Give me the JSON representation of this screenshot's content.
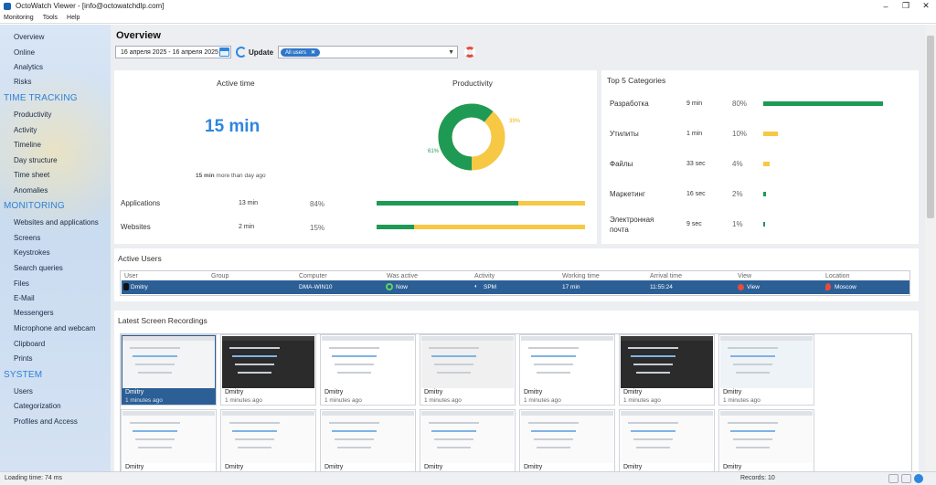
{
  "window": {
    "title": "OctoWatch Viewer - [info@octowatchdlp.com]"
  },
  "menu": [
    "Monitoring",
    "Tools",
    "Help"
  ],
  "sidebar": {
    "top_items": [
      "Overview",
      "Online",
      "Analytics",
      "Risks"
    ],
    "sections": [
      {
        "title": "TIME TRACKING",
        "items": [
          "Productivity",
          "Activity",
          "Timeline",
          "Day structure",
          "Time sheet",
          "Anomalies"
        ]
      },
      {
        "title": "MONITORING",
        "items": [
          "Websites and applications",
          "Screens",
          "Keystrokes",
          "Search queries",
          "Files",
          "E-Mail",
          "Messengers",
          "Microphone and webcam",
          "Clipboard",
          "Prints"
        ]
      },
      {
        "title": "SYSTEM",
        "items": [
          "Users",
          "Categorization",
          "Profiles and Access"
        ]
      }
    ]
  },
  "toolbar": {
    "title": "Overview",
    "date_range": "16 апреля 2025 - 16 апреля 2025",
    "update_label": "Update",
    "user_chip": "All users"
  },
  "active_time": {
    "title": "Active time",
    "value": "15 min",
    "compare_bold": "15 min",
    "compare_rest": "more than day ago"
  },
  "productivity": {
    "title": "Productivity",
    "productive_pct": 61,
    "productive_label": "61%",
    "other_label": "39%",
    "colors": {
      "productive": "#1e9a55",
      "other": "#f6c844"
    }
  },
  "usage": [
    {
      "name": "Applications",
      "time": "13 min",
      "pct": "84%",
      "green_fraction": 0.68
    },
    {
      "name": "Websites",
      "time": "2 min",
      "pct": "15%",
      "green_fraction": 0.18
    }
  ],
  "top_categories": {
    "title": "Top 5 Categories",
    "items": [
      {
        "name": "Разработка",
        "time": "9 min",
        "pct": "80%",
        "value": 80
      },
      {
        "name": "Утилиты",
        "time": "1 min",
        "pct": "10%",
        "value": 10
      },
      {
        "name": "Файлы",
        "time": "33 sec",
        "pct": "4%",
        "value": 4
      },
      {
        "name": "Маркетинг",
        "time": "16 sec",
        "pct": "2%",
        "value": 2
      },
      {
        "name": "Электронная",
        "name2": "почта",
        "time": "9 sec",
        "pct": "1%",
        "value": 1
      }
    ]
  },
  "active_users": {
    "title": "Active Users",
    "columns": [
      "User",
      "Group",
      "Computer",
      "Was active",
      "Activity",
      "Working time",
      "Arrival time",
      "View",
      "Location"
    ],
    "row": {
      "user": "Dmitry",
      "group": "",
      "computer": "DMA-WIN10",
      "was_active": "Now",
      "activity": "SPM",
      "working_time": "17 min",
      "arrival": "11:55:24",
      "view": "View",
      "location": "Moscow"
    }
  },
  "recordings": {
    "title": "Latest Screen Recordings",
    "items": [
      {
        "user": "Dmitry",
        "ago": "1 minutes ago"
      },
      {
        "user": "Dmitry",
        "ago": "1 minutes ago"
      },
      {
        "user": "Dmitry",
        "ago": "1 minutes ago"
      },
      {
        "user": "Dmitry",
        "ago": "1 minutes ago"
      },
      {
        "user": "Dmitry",
        "ago": "1 minutes ago"
      },
      {
        "user": "Dmitry",
        "ago": "1 minutes ago"
      },
      {
        "user": "Dmitry",
        "ago": "1 minutes ago"
      },
      {
        "user": "Dmitry",
        "ago": ""
      },
      {
        "user": "Dmitry",
        "ago": ""
      },
      {
        "user": "Dmitry",
        "ago": ""
      },
      {
        "user": "Dmitry",
        "ago": ""
      },
      {
        "user": "Dmitry",
        "ago": ""
      },
      {
        "user": "Dmitry",
        "ago": ""
      },
      {
        "user": "Dmitry",
        "ago": ""
      }
    ]
  },
  "status": {
    "loading": "Loading time: 74 ms",
    "records": "Records: 10"
  }
}
